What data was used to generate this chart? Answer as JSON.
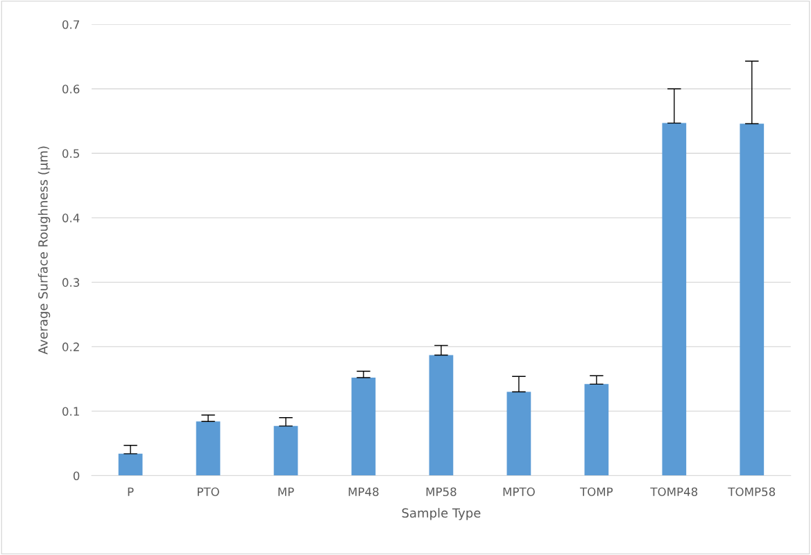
{
  "chart_data": {
    "type": "bar",
    "xlabel": "Sample Type",
    "ylabel": "Average Surface Roughness (µm)",
    "categories": [
      "P",
      "PTO",
      "MP",
      "MP48",
      "MP58",
      "MPTO",
      "TOMP",
      "TOMP48",
      "TOMP58"
    ],
    "values": [
      0.034,
      0.084,
      0.077,
      0.152,
      0.187,
      0.13,
      0.142,
      0.547,
      0.546
    ],
    "errors": [
      [
        0.034,
        0.047
      ],
      [
        0.084,
        0.094
      ],
      [
        0.077,
        0.09
      ],
      [
        0.152,
        0.162
      ],
      [
        0.187,
        0.202
      ],
      [
        0.13,
        0.154
      ],
      [
        0.142,
        0.155
      ],
      [
        0.547,
        0.6
      ],
      [
        0.546,
        0.643
      ]
    ],
    "color": "#5b9bd5",
    "ylim": [
      0,
      0.7
    ],
    "yticks": [
      {
        "value": 0,
        "label": "0"
      },
      0.1,
      0.2,
      0.3,
      0.4,
      0.5,
      0.6,
      0.7
    ],
    "grid": "y"
  }
}
